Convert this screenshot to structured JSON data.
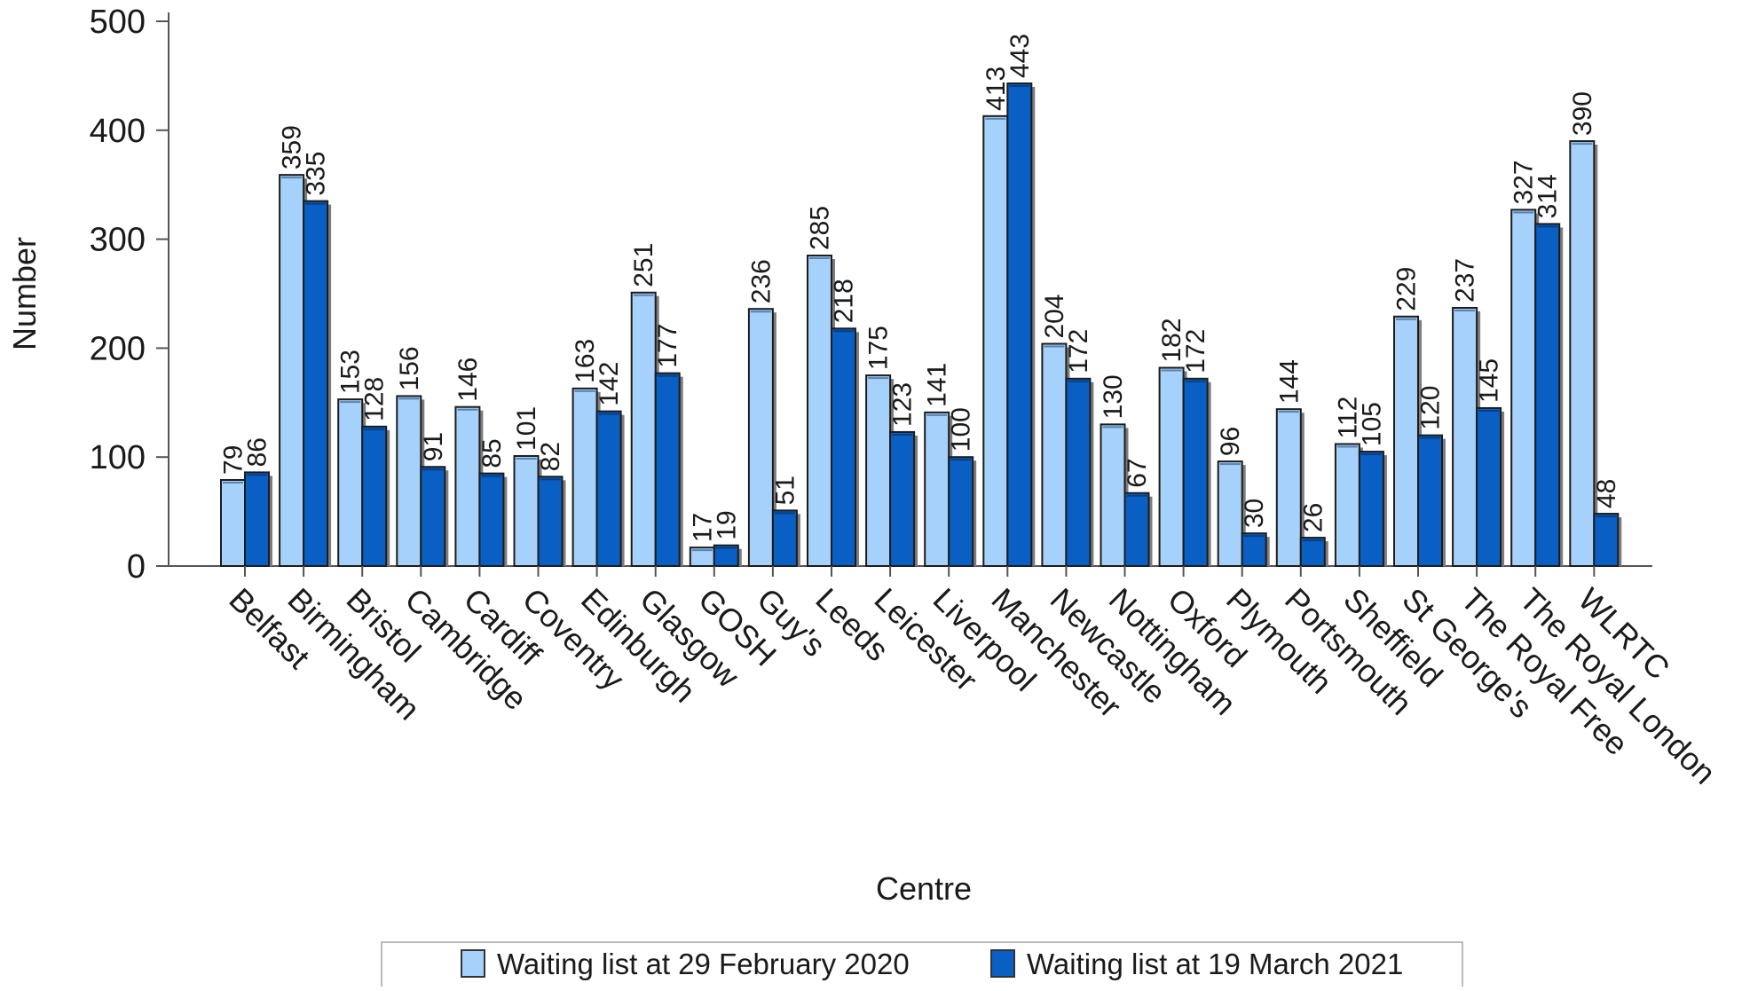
{
  "chart_data": {
    "type": "bar",
    "title": "",
    "xlabel": "Centre",
    "ylabel": "Number",
    "ylim": [
      0,
      500
    ],
    "yticks": [
      0,
      100,
      200,
      300,
      400,
      500
    ],
    "grid": false,
    "legend_position": "bottom",
    "categories": [
      "Belfast",
      "Birmingham",
      "Bristol",
      "Cambridge",
      "Cardiff",
      "Coventry",
      "Edinburgh",
      "Glasgow",
      "GOSH",
      "Guy's",
      "Leeds",
      "Leicester",
      "Liverpool",
      "Manchester",
      "Newcastle",
      "Nottingham",
      "Oxford",
      "Plymouth",
      "Portsmouth",
      "Sheffield",
      "St George's",
      "The Royal Free",
      "The Royal London",
      "WLRTC"
    ],
    "series": [
      {
        "name": "Waiting list at 29 February 2020",
        "color": "#a6d1fb",
        "values": [
          79,
          359,
          153,
          156,
          146,
          101,
          163,
          251,
          17,
          236,
          285,
          175,
          141,
          413,
          204,
          130,
          182,
          96,
          144,
          112,
          229,
          237,
          327,
          390
        ]
      },
      {
        "name": "Waiting list at 19 March 2021",
        "color": "#0a5fc4",
        "values": [
          86,
          335,
          128,
          91,
          85,
          82,
          142,
          177,
          19,
          51,
          218,
          123,
          100,
          443,
          172,
          67,
          172,
          30,
          26,
          105,
          120,
          145,
          314,
          48
        ]
      }
    ]
  }
}
